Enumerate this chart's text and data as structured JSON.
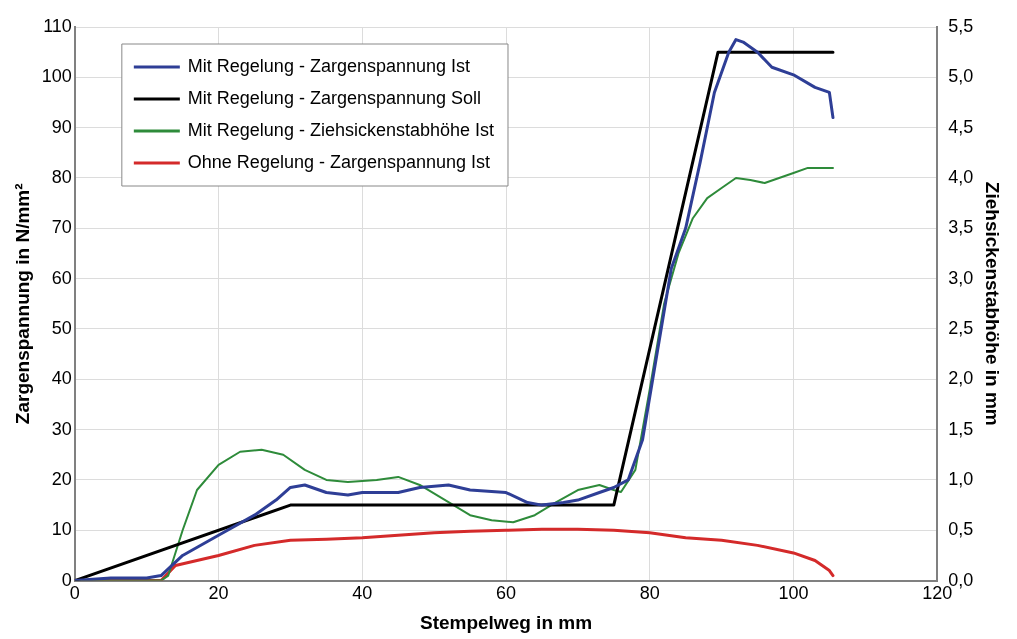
{
  "chart_data": {
    "type": "line",
    "xlabel": "Stempelweg in mm",
    "ylabel": "Zargenspannung in N/mm²",
    "y2label": "Ziehsickenstabhöhe in mm",
    "xlim": [
      0,
      120
    ],
    "xticks": [
      0,
      20,
      40,
      60,
      80,
      100,
      120
    ],
    "ylim": [
      0,
      110
    ],
    "yticks": [
      0,
      10,
      20,
      30,
      40,
      50,
      60,
      70,
      80,
      90,
      100,
      110
    ],
    "y2lim": [
      0,
      5.5
    ],
    "y2ticks": [
      {
        "value": 0,
        "label": "0,0"
      },
      {
        "value": 0.5,
        "label": "0,5"
      },
      {
        "value": 1,
        "label": "1,0"
      },
      {
        "value": 1.5,
        "label": "1,5"
      },
      {
        "value": 2,
        "label": "2,0"
      },
      {
        "value": 2.5,
        "label": "2,5"
      },
      {
        "value": 3,
        "label": "3,0"
      },
      {
        "value": 3.5,
        "label": "3,5"
      },
      {
        "value": 4,
        "label": "4,0"
      },
      {
        "value": 4.5,
        "label": "4,5"
      },
      {
        "value": 5,
        "label": "5,0"
      },
      {
        "value": 5.5,
        "label": "5,5"
      }
    ],
    "grid": true,
    "legend": "top left",
    "marker": "none",
    "line_style": "solid",
    "series": [
      {
        "name": "Mit Regelung - Zargenspannung Ist",
        "color": "#2e3e96",
        "x": [
          0,
          5,
          10,
          12,
          15,
          20,
          25,
          28,
          30,
          32,
          35,
          38,
          40,
          45,
          48,
          52,
          55,
          60,
          63,
          65,
          68,
          70,
          73,
          75,
          77,
          79,
          81,
          83,
          85,
          87,
          89,
          91,
          92,
          93,
          95,
          97,
          100,
          103,
          105,
          105.5
        ],
        "values": [
          0,
          0.5,
          0.5,
          1,
          5,
          9,
          13,
          16,
          18.5,
          19,
          17.5,
          17,
          17.5,
          17.5,
          18.5,
          19,
          18,
          17.5,
          15.5,
          15,
          15.5,
          16,
          17.5,
          18.5,
          20,
          28,
          45,
          62,
          70,
          83,
          97,
          105,
          107.5,
          107,
          105,
          102,
          100.5,
          98,
          97,
          92
        ]
      },
      {
        "name": "Mit Regelung - Zargenspannung Soll",
        "color": "#000000",
        "x": [
          0,
          30,
          75,
          89.5,
          105.5
        ],
        "values": [
          0,
          15,
          15,
          105,
          105
        ]
      },
      {
        "name": "Mit Regelung - Ziehsickenstabhöhe Ist",
        "color": "#2e8b3a",
        "axis": "y2",
        "x": [
          0,
          12,
          13,
          15,
          17,
          20,
          23,
          26,
          29,
          32,
          35,
          38,
          42,
          45,
          48,
          52,
          55,
          58,
          61,
          64,
          67,
          70,
          73,
          75,
          76,
          78,
          80,
          82,
          84,
          86,
          88,
          90,
          92,
          94,
          96,
          98,
          100,
          102,
          105.5
        ],
        "values": [
          0,
          0,
          0.05,
          0.5,
          0.9,
          1.15,
          1.28,
          1.3,
          1.25,
          1.1,
          1.0,
          0.98,
          1.0,
          1.03,
          0.95,
          0.78,
          0.65,
          0.6,
          0.58,
          0.65,
          0.78,
          0.9,
          0.95,
          0.9,
          0.88,
          1.1,
          1.9,
          2.75,
          3.25,
          3.6,
          3.8,
          3.9,
          4.0,
          3.98,
          3.95,
          4.0,
          4.05,
          4.1,
          4.1
        ]
      },
      {
        "name": "Ohne Regelung - Zargenspannung Ist",
        "color": "#d42a2a",
        "x": [
          0,
          12,
          14,
          20,
          25,
          30,
          35,
          40,
          45,
          50,
          55,
          60,
          65,
          70,
          75,
          80,
          85,
          90,
          95,
          100,
          103,
          105,
          105.5
        ],
        "values": [
          0,
          0,
          3,
          5,
          7,
          8,
          8.2,
          8.5,
          9,
          9.5,
          9.8,
          10,
          10.2,
          10.2,
          10,
          9.5,
          8.5,
          8,
          7,
          5.5,
          4,
          2,
          1
        ]
      }
    ]
  }
}
